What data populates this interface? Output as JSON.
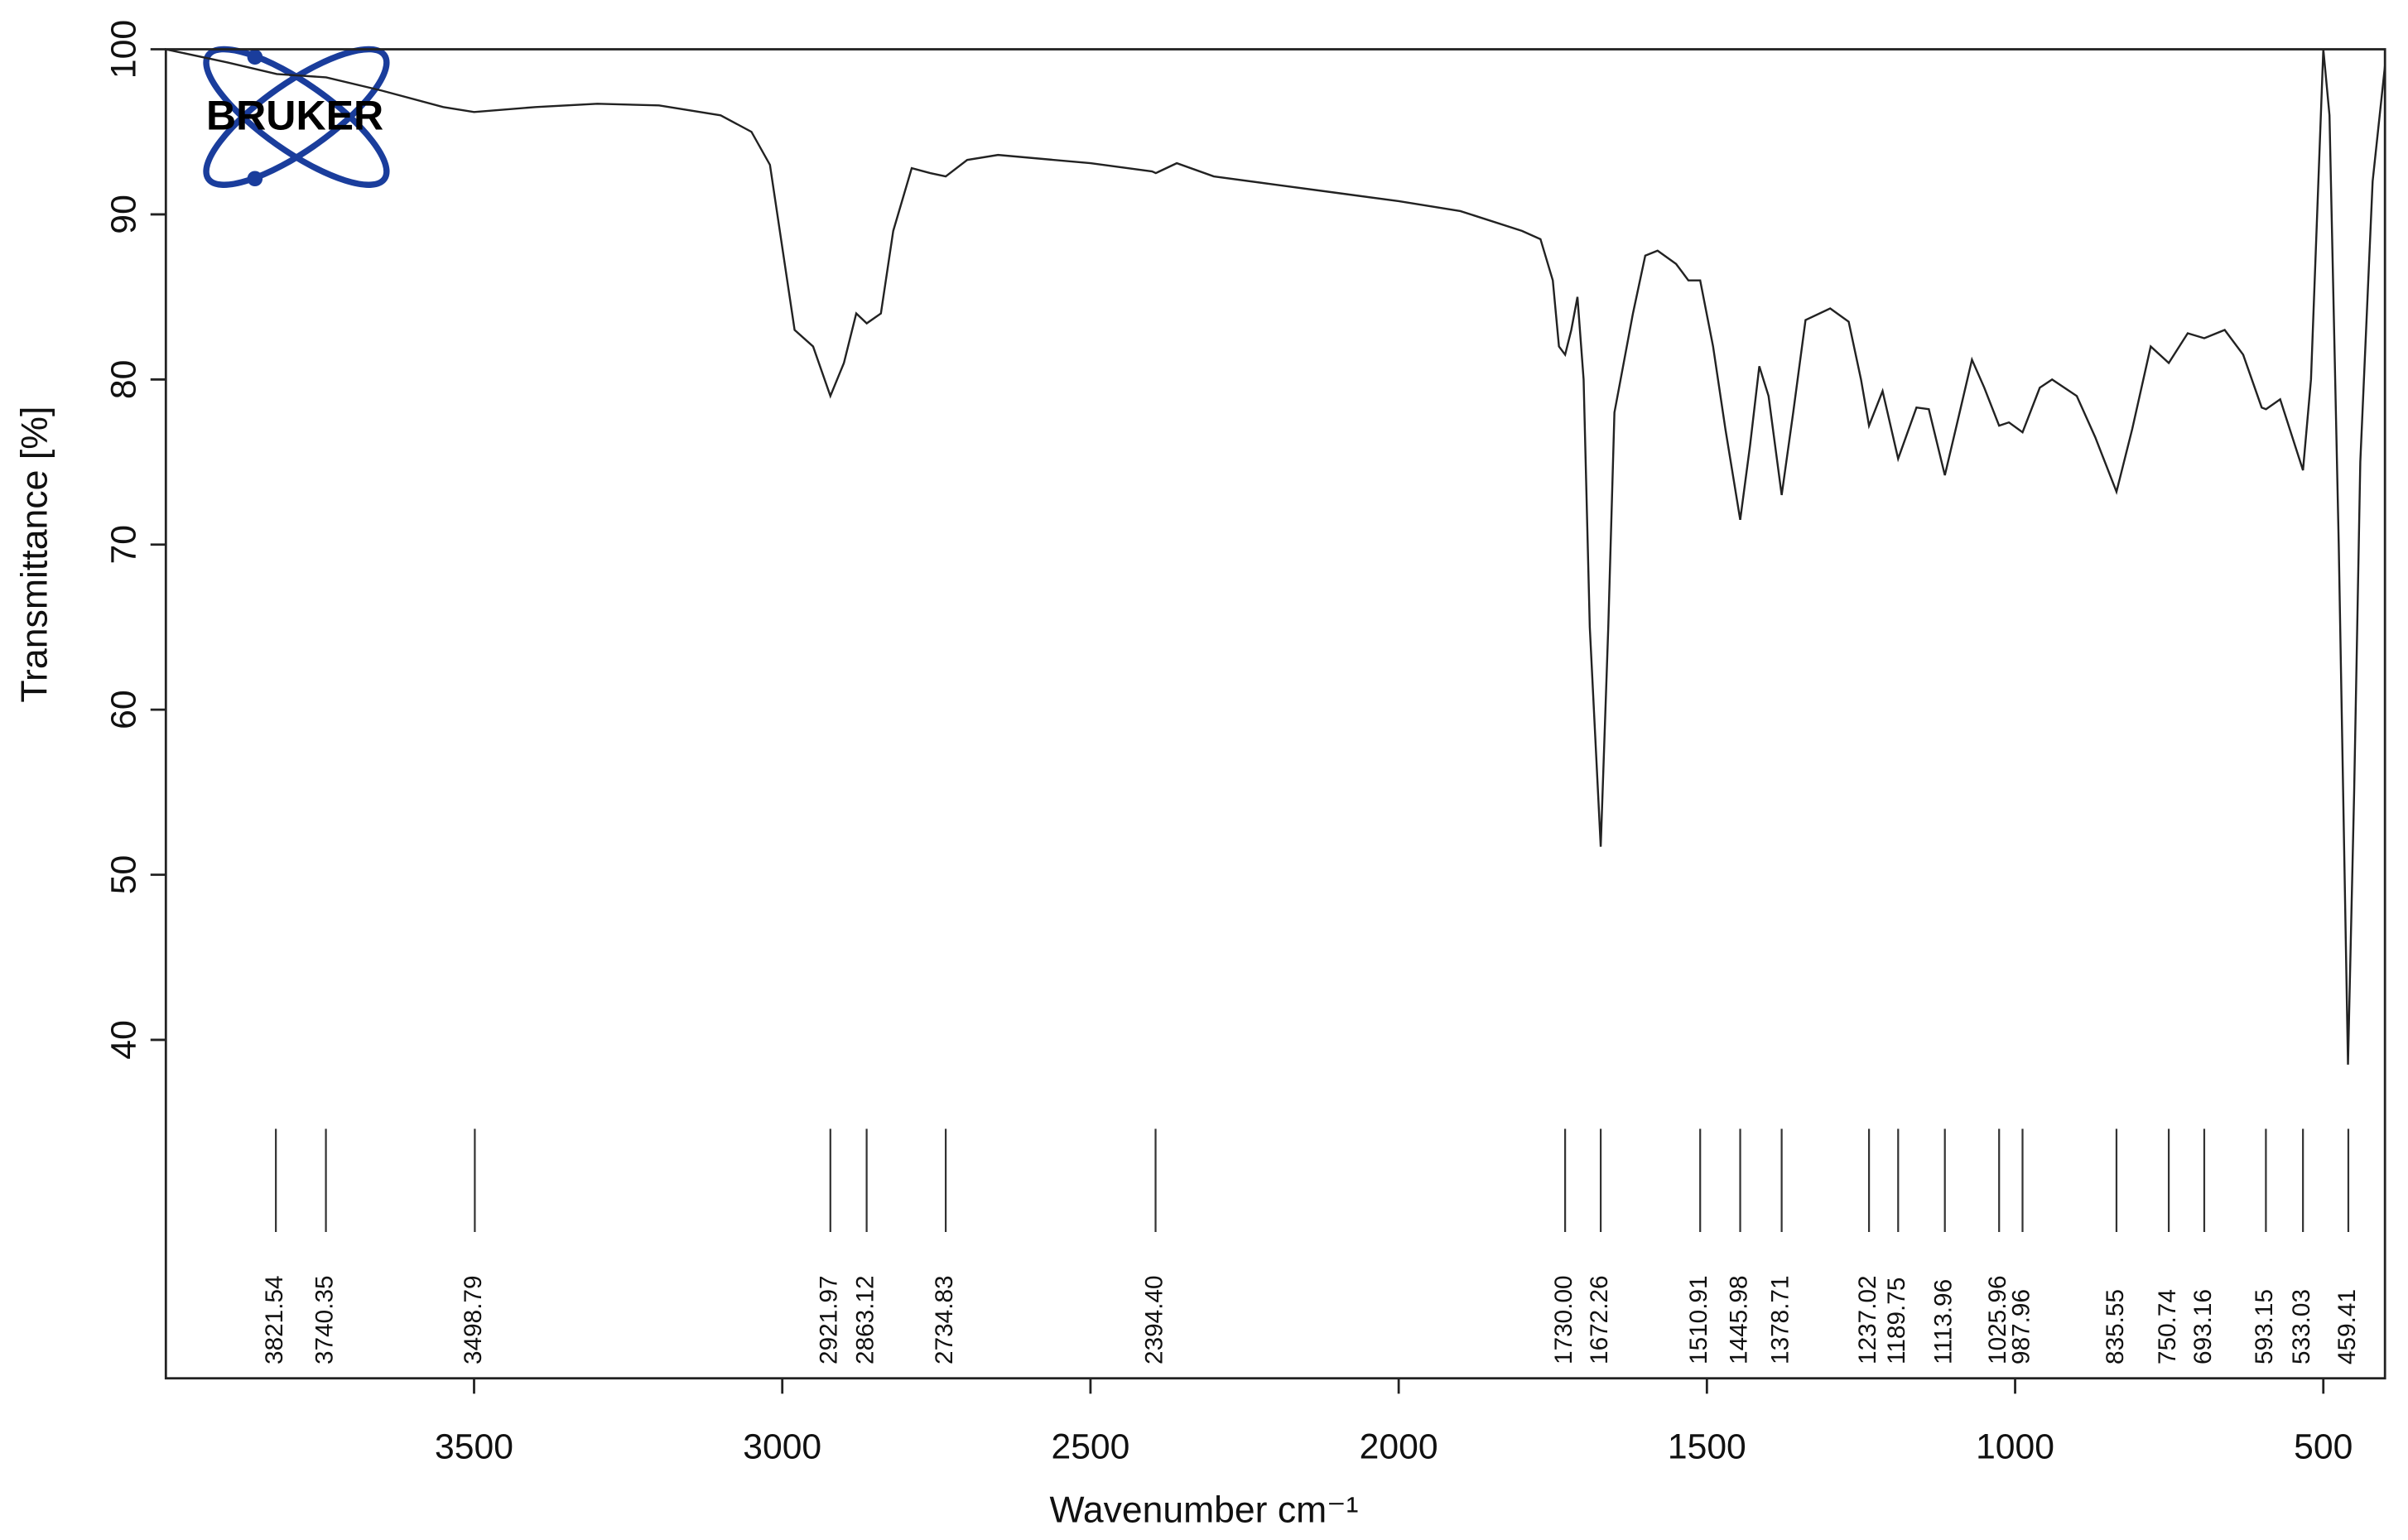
{
  "chart_data": {
    "type": "line",
    "logo": "BRUKER",
    "xlabel": "Wavenumber cm⁻¹",
    "ylabel": "Transmittance [%]",
    "xlim": [
      4000,
      400
    ],
    "xticks": [
      3500,
      3000,
      2500,
      2000,
      1500,
      1000,
      500
    ],
    "ylim": [
      19.5,
      100
    ],
    "yticks": [
      40,
      50,
      60,
      70,
      80,
      90,
      100
    ],
    "color": "#222222",
    "x": [
      4000,
      3900,
      3820,
      3740,
      3650,
      3550,
      3500,
      3400,
      3300,
      3200,
      3100,
      3050,
      3020,
      3000,
      2980,
      2950,
      2921.97,
      2900,
      2880,
      2863,
      2840,
      2820,
      2790,
      2760,
      2734.83,
      2700,
      2650,
      2500,
      2400,
      2394,
      2360,
      2300,
      2200,
      2100,
      2000,
      1900,
      1800,
      1770,
      1750,
      1740,
      1730,
      1720,
      1710,
      1700,
      1690,
      1672.26,
      1660,
      1650,
      1640,
      1620,
      1600,
      1580,
      1550,
      1530,
      1510.91,
      1490,
      1470,
      1445.98,
      1430,
      1415,
      1400,
      1378.71,
      1360,
      1340,
      1300,
      1270,
      1250,
      1237,
      1215,
      1189.75,
      1160,
      1140,
      1113.96,
      1090,
      1070,
      1050,
      1025.96,
      1010,
      987.96,
      960,
      940,
      900,
      870,
      835.55,
      810,
      780,
      750.74,
      720,
      693.16,
      660,
      630,
      600,
      593,
      570,
      533,
      520,
      505,
      500,
      490,
      475,
      460,
      450,
      440,
      420,
      400
    ],
    "values": [
      100,
      99.2,
      98.5,
      98.3,
      97.5,
      96.5,
      96.2,
      96.5,
      96.7,
      96.6,
      96,
      95,
      93,
      88,
      83,
      82,
      79,
      81,
      84,
      83.4,
      84,
      89,
      92.8,
      92.5,
      92.3,
      93.3,
      93.6,
      93.1,
      92.6,
      92.5,
      93.1,
      92.3,
      91.8,
      91.3,
      90.8,
      90.2,
      89,
      88.5,
      86,
      82,
      81.5,
      83,
      85,
      80,
      65,
      51.7,
      65,
      78,
      80,
      84,
      87.5,
      87.8,
      87,
      86,
      86,
      82,
      77,
      71.5,
      76,
      80.8,
      79,
      73,
      78,
      83.6,
      84.3,
      83.5,
      80,
      77.2,
      79.3,
      75.2,
      78.3,
      78.2,
      74.2,
      78,
      81.2,
      79.5,
      77.2,
      77.4,
      76.8,
      79.5,
      80,
      79,
      76.5,
      73.2,
      77,
      82,
      81,
      82.8,
      82.5,
      83,
      81.5,
      78.3,
      78.2,
      78.8,
      74.5,
      80,
      95,
      100,
      96,
      70,
      38.5,
      55,
      75,
      92,
      99
    ],
    "peaks": {
      "values": [
        3821.54,
        3740.35,
        3498.79,
        2921.97,
        2863.12,
        2734.83,
        2394.4,
        1730,
        1672.26,
        1510.91,
        1445.98,
        1378.71,
        1237.02,
        1189.75,
        1113.96,
        1025.96,
        987.96,
        835.55,
        750.74,
        693.16,
        593.15,
        533.03,
        459.41
      ],
      "value_labels": [
        "3821.54",
        "3740.35",
        "3498.79",
        "2921.97",
        "2863.12",
        "2734.83",
        "2394.40",
        "1730.00",
        "1672.26",
        "1510.91",
        "1445.98",
        "1378.71",
        "1237.02",
        "1189.75",
        "1113.96",
        "1025.96",
        "987.96",
        "835.55",
        "750.74",
        "693.16",
        "593.15",
        "533.03",
        "459.41"
      ]
    }
  }
}
